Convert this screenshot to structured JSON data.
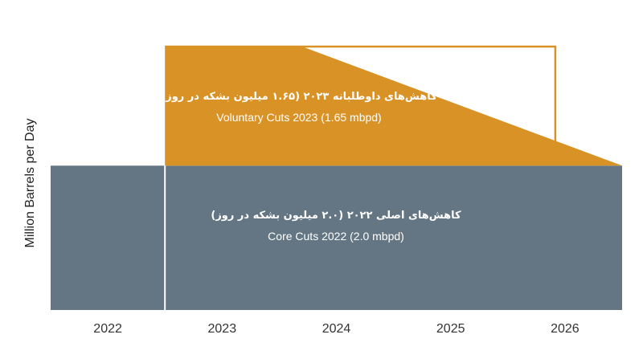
{
  "chart_data": {
    "type": "area",
    "x_categories": [
      "2022",
      "2023",
      "2024",
      "2025",
      "2026"
    ],
    "ylabel": "Million Barrels per Day",
    "series": [
      {
        "key": "core",
        "label_fa": "کاهش‌های اصلی ۲۰۲۲ (۲.۰ میلیون بشکه در روز)",
        "label_en": "Core Cuts 2022 (2.0 mbpd)",
        "color": "#647683",
        "values": [
          2.0,
          2.0,
          2.0,
          2.0,
          2.0
        ]
      },
      {
        "key": "voluntary",
        "label_fa": "کاهش‌های داوطلبانه ۲۰۲۳ (۱.۶۵ میلیون بشکه در روز)",
        "label_en": "Voluntary Cuts 2023 (1.65 mbpd)",
        "color": "#d99225",
        "values": [
          0,
          1.65,
          1.4,
          1.0,
          0
        ]
      }
    ],
    "arrow": {
      "from": "2023",
      "to": "2026",
      "color": "#d99225"
    },
    "ylim": [
      0,
      3.65
    ],
    "grid": false,
    "legend": "none"
  }
}
